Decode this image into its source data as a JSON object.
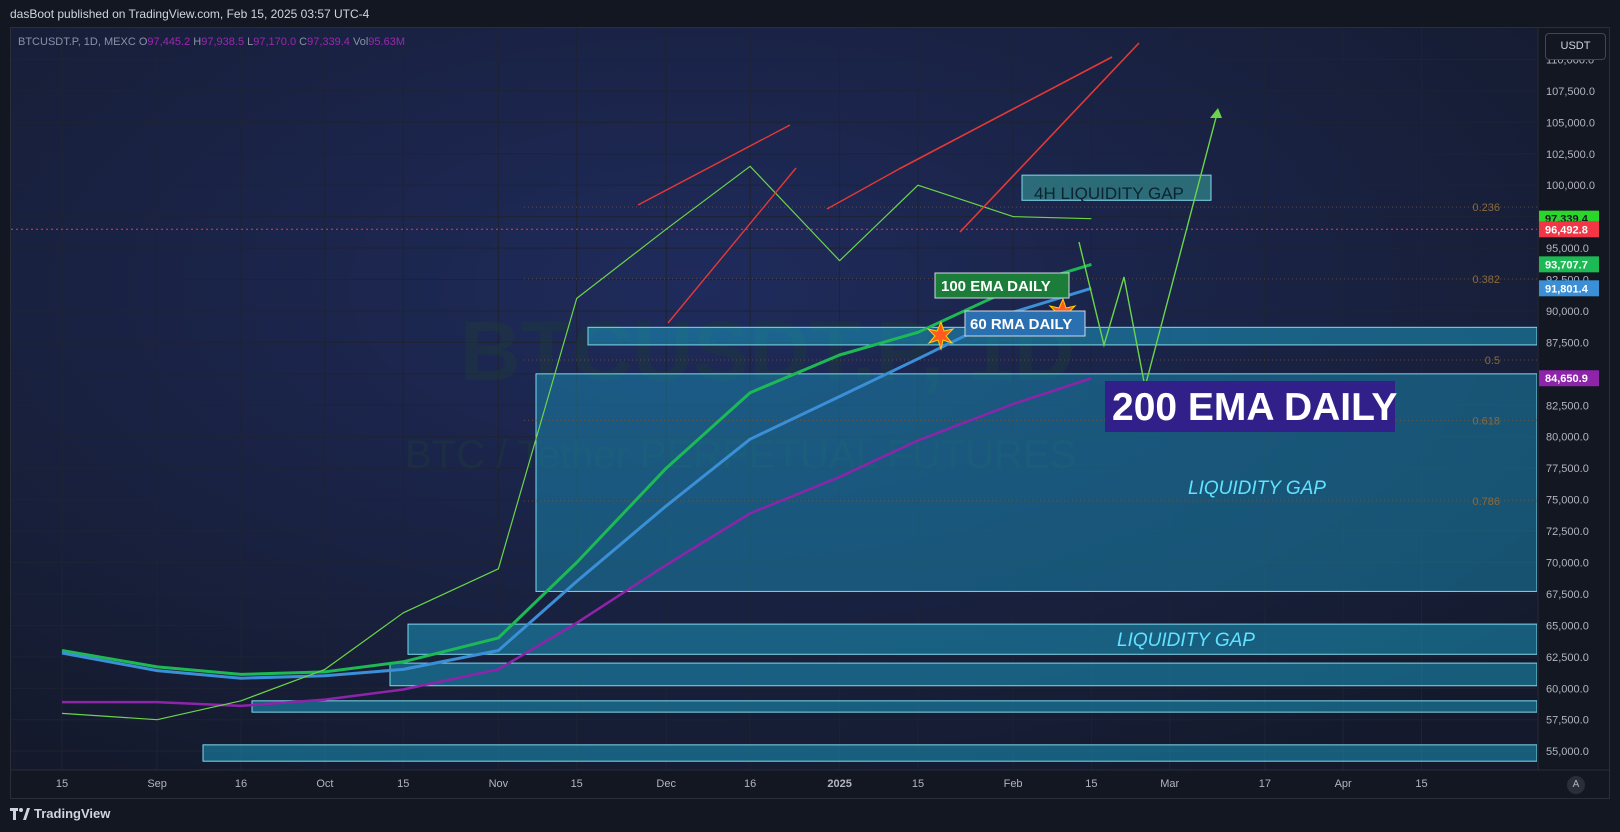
{
  "header": {
    "publisher_line": "dasBoot published on TradingView.com, Feb 15, 2025 03:57 UTC-4"
  },
  "symbol_bar": {
    "symbol": "BTCUSDT.P, 1D, MEXC",
    "open_label": "O",
    "open": "97,445.2",
    "high_label": "H",
    "high": "97,938.5",
    "low_label": "L",
    "low": "97,170.0",
    "close_label": "C",
    "close": "97,339.4",
    "vol_label": "Vol",
    "vol": "95.63M"
  },
  "currency_button": "USDT",
  "watermark": {
    "symbol": "BTCUSDT.P, 1D",
    "description": "BTC / Tether PERPETUAL FUTURES"
  },
  "footer": {
    "brand": "TradingView",
    "auto_button": "A"
  },
  "colors": {
    "background": "#131722",
    "background_glow": "#1e2a55",
    "grid": "#1e2333",
    "ema100": "#1db954",
    "ema60": "#3a8fd6",
    "ema200": "#8e24aa",
    "price_line": "#6bd44b",
    "trendline": "#e53935",
    "projection": "#6bd44b",
    "gap_fill": "#1aa0c8",
    "gap_border": "#7fd9ec"
  },
  "chart_data": {
    "type": "line",
    "title": "",
    "y_axis": {
      "range": [
        53500,
        112500
      ],
      "ticks": [
        "110,000.0",
        "107,500.0",
        "105,000.0",
        "102,500.0",
        "100,000.0",
        "97,500.0",
        "95,000.0",
        "92,500.0",
        "90,000.0",
        "87,500.0",
        "85,000.0",
        "82,500.0",
        "80,000.0",
        "77,500.0",
        "75,000.0",
        "72,500.0",
        "70,000.0",
        "67,500.0",
        "65,000.0",
        "62,500.0",
        "60,000.0",
        "57,500.0",
        "55,000.0"
      ]
    },
    "x_axis": {
      "ticks": [
        "15",
        "Sep",
        "16",
        "Oct",
        "15",
        "Nov",
        "15",
        "Dec",
        "16",
        "2025",
        "15",
        "Feb",
        "15",
        "Mar",
        "17",
        "Apr",
        "15"
      ]
    },
    "price_tags": [
      {
        "label": "97,339.4",
        "value": 97339.4,
        "bg": "#2bd62b",
        "fg": "#131722"
      },
      {
        "label": "96,492.8",
        "value": 96492.8,
        "bg": "#f23645",
        "fg": "#ffffff"
      },
      {
        "label": "93,707.7",
        "value": 93707.7,
        "bg": "#1db954",
        "fg": "#ffffff"
      },
      {
        "label": "91,801.4",
        "value": 91801.4,
        "bg": "#3a8fd6",
        "fg": "#ffffff"
      },
      {
        "label": "84,650.9",
        "value": 84650.9,
        "bg": "#8e24aa",
        "fg": "#ffffff"
      }
    ],
    "fib_levels": [
      {
        "label": "0.236",
        "value": 98260
      },
      {
        "label": "0.382",
        "value": 92550
      },
      {
        "label": "0.5",
        "value": 86100
      },
      {
        "label": "0.618",
        "value": 81300
      },
      {
        "label": "0.786",
        "value": 74900
      }
    ],
    "series": [
      {
        "name": "100 EMA DAILY",
        "x": [
          "Aug 15",
          "Sep 1",
          "Sep 16",
          "Oct 1",
          "Oct 15",
          "Nov 1",
          "Nov 15",
          "Dec 1",
          "Dec 16",
          "Jan 1",
          "Jan 15",
          "Feb 1",
          "Feb 15"
        ],
        "values": [
          63000,
          61700,
          61100,
          61300,
          62100,
          64000,
          70000,
          77500,
          83500,
          86500,
          88300,
          91800,
          93700
        ]
      },
      {
        "name": "60 RMA DAILY",
        "x": [
          "Aug 15",
          "Sep 1",
          "Sep 16",
          "Oct 1",
          "Oct 15",
          "Nov 1",
          "Nov 15",
          "Dec 1",
          "Dec 16",
          "Jan 1",
          "Jan 15",
          "Feb 1",
          "Feb 15"
        ],
        "values": [
          62800,
          61400,
          60800,
          61000,
          61500,
          63000,
          68500,
          74500,
          79800,
          83200,
          86200,
          89900,
          91800
        ]
      },
      {
        "name": "200 EMA DAILY",
        "x": [
          "Aug 15",
          "Sep 1",
          "Sep 16",
          "Oct 1",
          "Oct 15",
          "Nov 1",
          "Nov 15",
          "Dec 1",
          "Dec 16",
          "Jan 1",
          "Jan 15",
          "Feb 1",
          "Feb 15"
        ],
        "values": [
          58900,
          58900,
          58600,
          59100,
          59900,
          61500,
          65200,
          69800,
          73900,
          76800,
          79700,
          82600,
          84650
        ]
      },
      {
        "name": "",
        "x": [
          "Aug 15",
          "Sep 1",
          "Sep 16",
          "Oct 1",
          "Oct 15",
          "Nov 1",
          "Nov 15",
          "Dec 1",
          "Dec 16",
          "Jan 1",
          "Jan 15",
          "Feb 1",
          "Feb 15"
        ],
        "values": [
          58000,
          57500,
          59000,
          61500,
          66000,
          69500,
          91000,
          96500,
          101500,
          94000,
          100000,
          97500,
          97339
        ]
      }
    ],
    "zones": [
      {
        "label": "4H LIQUIDITY GAP",
        "from": 98800,
        "to": 100800
      },
      {
        "label": "",
        "from": 87300,
        "to": 88700
      },
      {
        "label": "LIQUIDITY GAP",
        "from": 67700,
        "to": 85000
      },
      {
        "label": "LIQUIDITY GAP",
        "from": 62700,
        "to": 65100
      },
      {
        "label": "",
        "from": 60200,
        "to": 62000
      },
      {
        "label": "",
        "from": 58100,
        "to": 59000
      },
      {
        "label": "",
        "from": 54200,
        "to": 55500
      }
    ],
    "annotations": [
      "4H LIQUIDITY GAP",
      "100 EMA DAILY",
      "60 RMA DAILY",
      "200 EMA DAILY",
      "LIQUIDITY GAP",
      "LIQUIDITY GAP"
    ]
  }
}
